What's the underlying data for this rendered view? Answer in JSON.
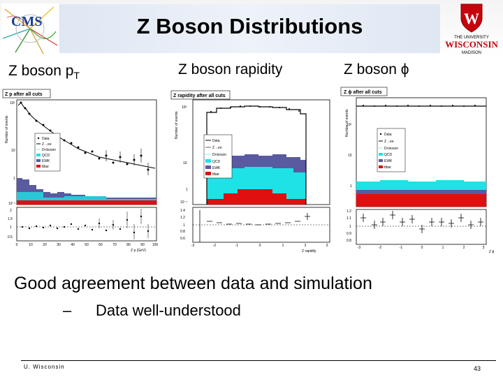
{
  "slide": {
    "title": "Z Boson Distributions",
    "logo_right_line1": "THE UNIVERSITY",
    "logo_right_line2": "WISCONSIN",
    "logo_right_line3": "MADISON",
    "footer_left": "U. Wisconsin",
    "page_number": "43"
  },
  "plots": [
    {
      "label": "Z boson p",
      "label_sub": "T",
      "panel_title": "Z p  after all cuts",
      "xaxis_title": "Z p  (GeV)",
      "ylabel": "Number of events",
      "xticks": [
        "0",
        "10",
        "20",
        "30",
        "40",
        "50",
        "60",
        "70",
        "80",
        "90",
        "100"
      ],
      "yticks_main": [
        "10²",
        "10",
        "1",
        "10⁻¹"
      ],
      "yticks_ratio": [
        "2",
        "1.5",
        "1",
        "0.5"
      ]
    },
    {
      "label": "Z boson rapidity",
      "panel_title": "Z rapidity after all cuts",
      "xaxis_title": "Z rapidity",
      "ylabel": "Number of events",
      "xticks": [
        "-3",
        "-2",
        "-1",
        "0",
        "1",
        "2",
        "3"
      ],
      "yticks_main": [
        "10²",
        "10",
        "1",
        "10⁻¹"
      ],
      "yticks_ratio": [
        "1.4",
        "1.2",
        "1",
        "0.8",
        "0.6"
      ]
    },
    {
      "label": "Z boson ",
      "label_greek": "ϕ",
      "panel_title": "Z ϕ after all cuts",
      "xaxis_title": "Z ϕ",
      "ylabel": "Number of events",
      "xticks": [
        "-3",
        "-2",
        "-1",
        "0",
        "1",
        "2",
        "3"
      ],
      "yticks_main": [
        "10²",
        "10",
        "1"
      ],
      "yticks_ratio": [
        "1.2",
        "1.1",
        "1",
        "0.9",
        "0.8"
      ]
    }
  ],
  "legend": {
    "pt": [
      "Data",
      "Z→ee",
      "Di-boson",
      "QCD",
      "EWK",
      "ttbar"
    ],
    "rapidity": [
      "Data",
      "Z→ee",
      "Di-boson",
      "QCD",
      "EWK",
      "ttbar"
    ],
    "phi": [
      "Data",
      "Z→ee",
      "Di-boson",
      "QCD",
      "EWK",
      "ttbar"
    ]
  },
  "colors": {
    "qcd": "#1fe2e6",
    "ewk": "#5a5aa0",
    "ttbar": "#e01010",
    "diboson": "#50c8d0",
    "data": "#000000"
  },
  "text": {
    "conclusion": "Good agreement between data and simulation",
    "bullet_dash": "–",
    "bullet": "Data well-understood"
  }
}
